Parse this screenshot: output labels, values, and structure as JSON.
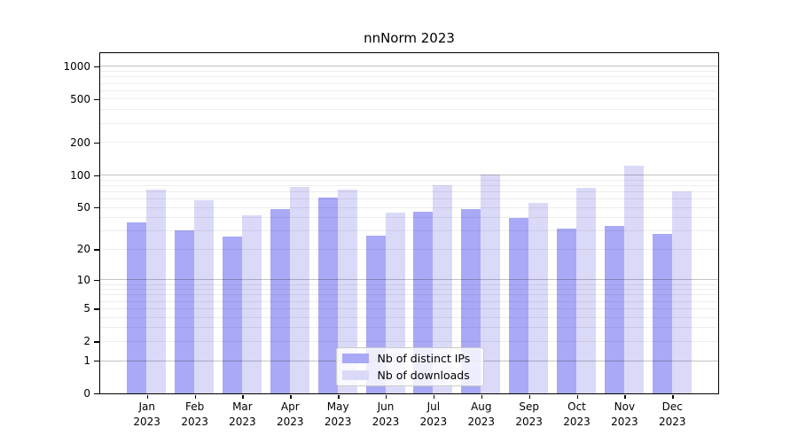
{
  "chart_data": {
    "type": "bar",
    "title": "nnNorm 2023",
    "categories": [
      "Jan 2023",
      "Feb 2023",
      "Mar 2023",
      "Apr 2023",
      "May 2023",
      "Jun 2023",
      "Jul 2023",
      "Aug 2023",
      "Sep 2023",
      "Oct 2023",
      "Nov 2023",
      "Dec 2023"
    ],
    "series": [
      {
        "name": "Nb of distinct IPs",
        "color": "#a9a9f7",
        "values": [
          36,
          30,
          26,
          48,
          61,
          27,
          45,
          48,
          39,
          31,
          33,
          28
        ]
      },
      {
        "name": "Nb of downloads",
        "color": "#dadaf8",
        "values": [
          73,
          58,
          42,
          77,
          73,
          44,
          79,
          100,
          54,
          76,
          120,
          70
        ]
      }
    ],
    "yscale": "log10(1+y)",
    "ylim": [
      0,
      1320
    ],
    "y_ticks": [
      1000,
      500,
      200,
      100,
      50,
      20,
      10,
      5,
      2,
      1,
      0
    ],
    "major_gridlines": [
      1,
      10,
      100,
      1000
    ],
    "minor_gridlines": [
      2,
      3,
      4,
      5,
      6,
      7,
      8,
      9,
      20,
      30,
      40,
      50,
      60,
      70,
      80,
      90,
      200,
      300,
      400,
      500,
      600,
      700,
      800,
      900
    ],
    "grid": true,
    "legend_position": "lower-center-inside",
    "xlabel": "",
    "ylabel": ""
  }
}
